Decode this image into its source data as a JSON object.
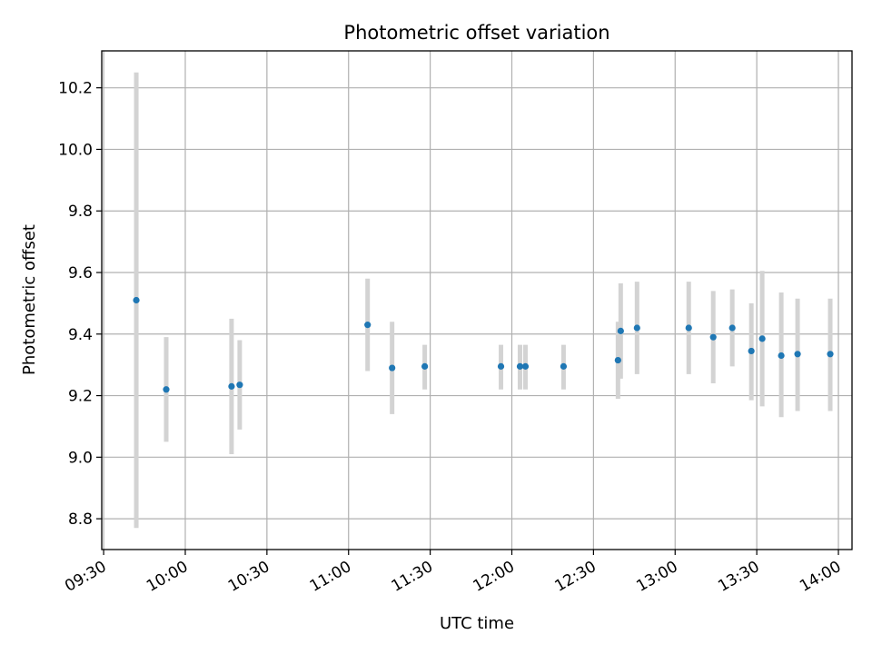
{
  "chart_data": {
    "type": "scatter",
    "title": "Photometric offset variation",
    "xlabel": "UTC time",
    "ylabel": "Photometric offset",
    "x_tick_labels": [
      "09:30",
      "10:00",
      "10:30",
      "11:00",
      "11:30",
      "12:00",
      "12:30",
      "13:00",
      "13:30",
      "14:00"
    ],
    "y_tick_labels": [
      "8.8",
      "9.0",
      "9.2",
      "9.4",
      "9.6",
      "9.8",
      "10.0",
      "10.2"
    ],
    "xlim": [
      "09:30",
      "14:05"
    ],
    "ylim": [
      8.7,
      10.32
    ],
    "grid": true,
    "marker_color": "#1f77b4",
    "errorbar_color": "#d3d3d3",
    "points": [
      {
        "time": "09:42",
        "value": 9.51,
        "low": 8.77,
        "high": 10.25
      },
      {
        "time": "09:53",
        "value": 9.22,
        "low": 9.05,
        "high": 9.39
      },
      {
        "time": "10:17",
        "value": 9.23,
        "low": 9.01,
        "high": 9.45
      },
      {
        "time": "10:20",
        "value": 9.235,
        "low": 9.09,
        "high": 9.38
      },
      {
        "time": "11:07",
        "value": 9.43,
        "low": 9.28,
        "high": 9.58
      },
      {
        "time": "11:16",
        "value": 9.29,
        "low": 9.14,
        "high": 9.44
      },
      {
        "time": "11:28",
        "value": 9.295,
        "low": 9.22,
        "high": 9.365
      },
      {
        "time": "11:56",
        "value": 9.295,
        "low": 9.22,
        "high": 9.365
      },
      {
        "time": "12:03",
        "value": 9.295,
        "low": 9.22,
        "high": 9.365
      },
      {
        "time": "12:05",
        "value": 9.295,
        "low": 9.22,
        "high": 9.365
      },
      {
        "time": "12:19",
        "value": 9.295,
        "low": 9.22,
        "high": 9.365
      },
      {
        "time": "12:39",
        "value": 9.315,
        "low": 9.19,
        "high": 9.44
      },
      {
        "time": "12:40",
        "value": 9.41,
        "low": 9.255,
        "high": 9.565
      },
      {
        "time": "12:46",
        "value": 9.42,
        "low": 9.27,
        "high": 9.57
      },
      {
        "time": "13:05",
        "value": 9.42,
        "low": 9.27,
        "high": 9.57
      },
      {
        "time": "13:14",
        "value": 9.39,
        "low": 9.24,
        "high": 9.54
      },
      {
        "time": "13:21",
        "value": 9.42,
        "low": 9.295,
        "high": 9.545
      },
      {
        "time": "13:28",
        "value": 9.345,
        "low": 9.185,
        "high": 9.5
      },
      {
        "time": "13:32",
        "value": 9.385,
        "low": 9.165,
        "high": 9.605
      },
      {
        "time": "13:39",
        "value": 9.33,
        "low": 9.13,
        "high": 9.535
      },
      {
        "time": "13:45",
        "value": 9.335,
        "low": 9.15,
        "high": 9.515
      },
      {
        "time": "13:57",
        "value": 9.335,
        "low": 9.15,
        "high": 9.515
      }
    ]
  }
}
